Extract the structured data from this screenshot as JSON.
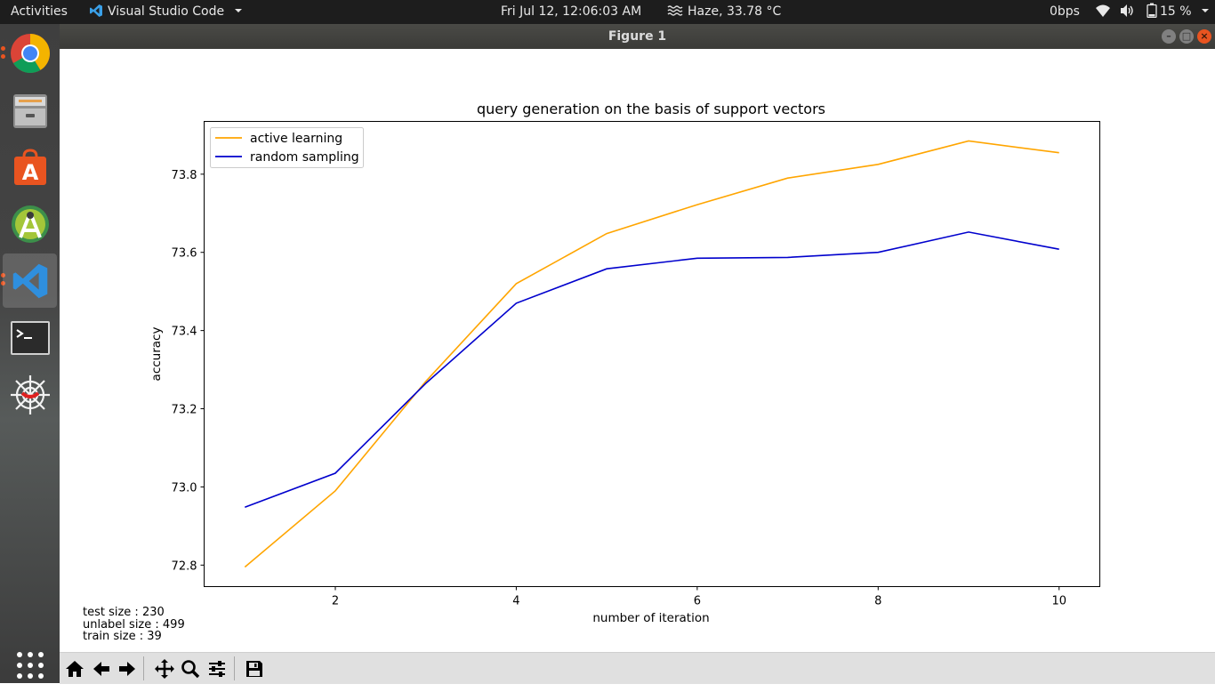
{
  "topbar": {
    "activities": "Activities",
    "app_name": "Visual Studio Code",
    "clock": "Fri Jul 12, 12:06:03 AM",
    "weather": "Haze, 33.78 °C",
    "net_speed": "0bps",
    "battery": "15 %"
  },
  "window": {
    "title": "Figure 1"
  },
  "dock": {
    "items": [
      {
        "name": "chrome-icon"
      },
      {
        "name": "files-icon"
      },
      {
        "name": "software-center-icon"
      },
      {
        "name": "android-studio-icon"
      },
      {
        "name": "vscode-icon"
      },
      {
        "name": "terminal-icon"
      },
      {
        "name": "spider-icon"
      },
      {
        "name": "app-grid-icon"
      }
    ]
  },
  "info": {
    "test": "test size : 230",
    "unlabel": "unlabel size : 499",
    "train": "train size : 39"
  },
  "toolbar": {
    "buttons": [
      "home-icon",
      "back-arrow-icon",
      "forward-arrow-icon",
      "pan-icon",
      "zoom-icon",
      "configure-icon",
      "save-icon"
    ]
  },
  "chart_data": {
    "type": "line",
    "title": "query generation on the basis of support vectors",
    "xlabel": "number of iteration",
    "ylabel": "accuracy",
    "xlim": [
      0.55,
      10.45
    ],
    "ylim": [
      72.745,
      73.935
    ],
    "xticks": [
      2,
      4,
      6,
      8,
      10
    ],
    "yticks": [
      72.8,
      73.0,
      73.2,
      73.4,
      73.6,
      73.8
    ],
    "ytick_labels": [
      "72.8",
      "73.0",
      "73.2",
      "73.4",
      "73.6",
      "73.8"
    ],
    "legend_position": "upper-left",
    "grid": false,
    "x": [
      1,
      2,
      3,
      4,
      5,
      6,
      7,
      8,
      9,
      10
    ],
    "series": [
      {
        "name": "active learning",
        "color": "#ffa500",
        "values": [
          72.795,
          72.99,
          73.27,
          73.52,
          73.648,
          73.722,
          73.79,
          73.825,
          73.885,
          73.855
        ]
      },
      {
        "name": "random sampling",
        "color": "#0000cd",
        "values": [
          72.948,
          73.035,
          73.265,
          73.47,
          73.558,
          73.585,
          73.587,
          73.6,
          73.652,
          73.608
        ]
      }
    ]
  }
}
